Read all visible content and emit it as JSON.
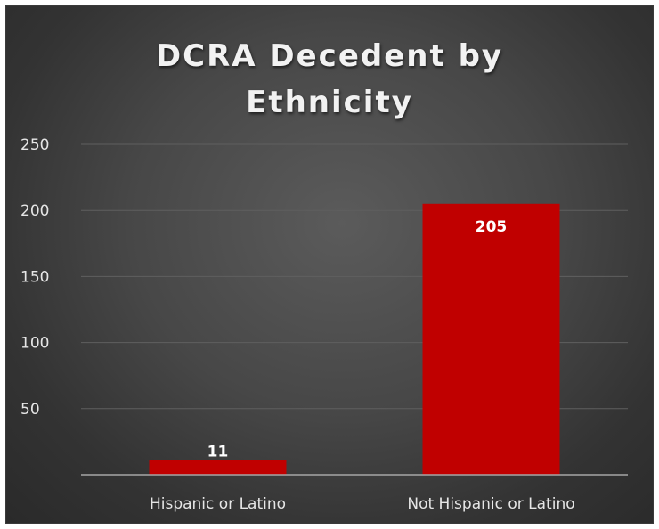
{
  "chart_data": {
    "type": "bar",
    "title": "DCRA Decedent by\nEthnicity",
    "categories": [
      "Hispanic or Latino",
      "Not Hispanic or Latino"
    ],
    "values": [
      11,
      205
    ],
    "data_labels": [
      "11",
      "205"
    ],
    "yticks": [
      50,
      100,
      150,
      200,
      250
    ],
    "ylim": [
      0,
      250
    ],
    "grid": true,
    "legend": "none",
    "bar_color": "#c00000",
    "background": "#474747"
  }
}
